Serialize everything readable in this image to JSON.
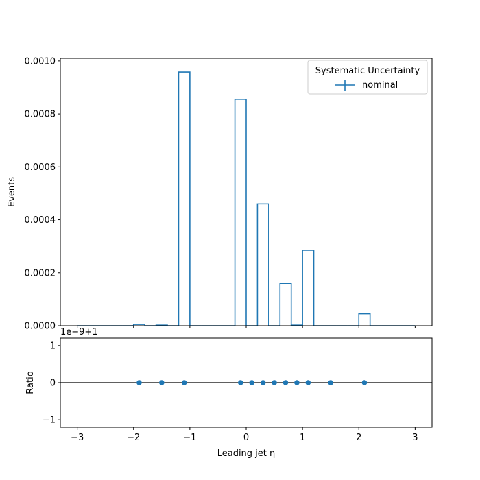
{
  "chart_data": [
    {
      "type": "histogram-step",
      "ylabel": "Events",
      "xlim": [
        -3.3,
        3.3
      ],
      "ylim": [
        0,
        0.00101
      ],
      "y_ticks": [
        0,
        0.0002,
        0.0004,
        0.0006,
        0.0008,
        0.001
      ],
      "y_tick_labels": [
        "0.0000",
        "0.0002",
        "0.0004",
        "0.0006",
        "0.0008",
        "0.0010"
      ],
      "legend": {
        "title": "Systematic Uncertainty",
        "placement": "top-right",
        "entries": [
          {
            "label": "nominal",
            "color": "#1f77b4"
          }
        ]
      },
      "series": [
        {
          "name": "nominal",
          "color": "#1f77b4",
          "bin_edges": [
            -3.0,
            -2.8,
            -2.6,
            -2.4,
            -2.2,
            -2.0,
            -1.8,
            -1.6,
            -1.4,
            -1.2,
            -1.0,
            -0.8,
            -0.6,
            -0.4,
            -0.2,
            0.0,
            0.2,
            0.4,
            0.6,
            0.8,
            1.0,
            1.2,
            1.4,
            1.6,
            1.8,
            2.0,
            2.2,
            2.4,
            2.6,
            2.8,
            3.0
          ],
          "values": [
            0,
            0,
            0,
            0,
            0,
            5e-06,
            0,
            2e-06,
            0,
            0.000958,
            0,
            0,
            0,
            0,
            0.000855,
            0,
            0.00046,
            0,
            0.00016,
            2e-06,
            0.000285,
            0,
            0,
            0,
            0,
            4.5e-05,
            0,
            0,
            0,
            0
          ]
        }
      ]
    },
    {
      "type": "scatter",
      "xlabel": "Leading jet  η",
      "ylabel": "Ratio",
      "offset_label": "1e−9+1",
      "xlim": [
        -3.3,
        3.3
      ],
      "ylim": [
        -1.2,
        1.2
      ],
      "x_ticks": [
        -3,
        -2,
        -1,
        0,
        1,
        2,
        3
      ],
      "x_tick_labels": [
        "−3",
        "−2",
        "−1",
        "0",
        "1",
        "2",
        "3"
      ],
      "y_ticks": [
        -1,
        0,
        1
      ],
      "y_tick_labels": [
        "−1",
        "0",
        "1"
      ],
      "reference_line": 0,
      "series": [
        {
          "name": "nominal",
          "color": "#1f77b4",
          "x": [
            -1.9,
            -1.5,
            -1.1,
            -0.1,
            0.1,
            0.3,
            0.5,
            0.7,
            0.9,
            1.1,
            1.5,
            2.1
          ],
          "y": [
            0,
            0,
            0,
            0,
            0,
            0,
            0,
            0,
            0,
            0,
            0,
            0
          ]
        }
      ]
    }
  ]
}
